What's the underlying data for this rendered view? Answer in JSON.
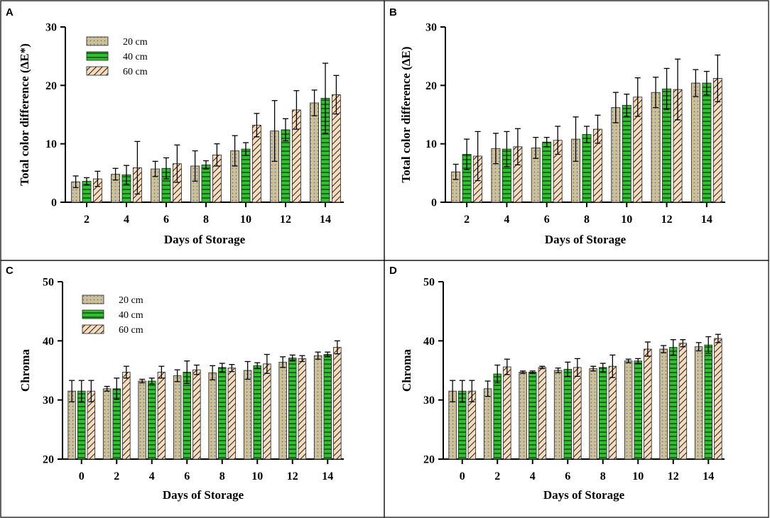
{
  "figure": {
    "series_names": [
      "20 cm",
      "40 cm",
      "60 cm"
    ],
    "colors": {
      "s20": "#cdbf96",
      "s20_dot": "#5a6a9a",
      "s40": "#2fbf2f",
      "s40_line": "#0b2e0b",
      "s60_bg": "#f3dcc0",
      "s60_line": "#2b1a0c"
    }
  },
  "chart_data": [
    {
      "id": "A",
      "type": "bar",
      "panel_label": "A",
      "ylabel": "Total color difference (ΔE*)",
      "xlabel": "Days of Storage",
      "ylim": [
        0,
        30
      ],
      "yticks": [
        0,
        10,
        20,
        30
      ],
      "categories": [
        "2",
        "4",
        "6",
        "8",
        "10",
        "12",
        "14"
      ],
      "series": [
        {
          "name": "20 cm",
          "values": [
            3.5,
            4.8,
            5.7,
            6.2,
            8.8,
            12.2,
            17.0
          ],
          "errors": [
            1.0,
            1.0,
            1.3,
            2.6,
            2.6,
            5.2,
            2.2
          ]
        },
        {
          "name": "40 cm",
          "values": [
            3.6,
            4.7,
            5.8,
            6.4,
            9.1,
            12.4,
            17.8
          ],
          "errors": [
            0.6,
            1.6,
            1.8,
            0.7,
            1.1,
            1.9,
            6.0
          ]
        },
        {
          "name": "60 cm",
          "values": [
            4.0,
            5.9,
            6.6,
            8.1,
            13.2,
            15.8,
            18.4
          ],
          "errors": [
            1.3,
            4.5,
            3.2,
            1.9,
            2.0,
            3.3,
            3.3
          ]
        }
      ],
      "legend_position": "top-left"
    },
    {
      "id": "B",
      "type": "bar",
      "panel_label": "B",
      "ylabel": "Total color difference (ΔE)",
      "xlabel": "Days of Storage",
      "ylim": [
        0,
        30
      ],
      "yticks": [
        0,
        10,
        20,
        30
      ],
      "categories": [
        "2",
        "4",
        "6",
        "8",
        "10",
        "12",
        "14"
      ],
      "series": [
        {
          "name": "20 cm",
          "values": [
            5.2,
            9.2,
            9.3,
            10.8,
            16.2,
            18.8,
            20.4
          ],
          "errors": [
            1.3,
            2.6,
            1.8,
            3.8,
            2.6,
            2.6,
            2.3
          ]
        },
        {
          "name": "40 cm",
          "values": [
            8.2,
            9.1,
            10.3,
            11.6,
            16.6,
            19.4,
            20.4
          ],
          "errors": [
            2.6,
            3.0,
            0.8,
            1.4,
            1.9,
            3.5,
            2.0
          ]
        },
        {
          "name": "60 cm",
          "values": [
            7.9,
            9.5,
            10.6,
            12.5,
            18.0,
            19.3,
            21.2
          ],
          "errors": [
            4.2,
            3.1,
            2.4,
            2.4,
            3.3,
            5.2,
            4.0
          ]
        }
      ],
      "legend_position": "none"
    },
    {
      "id": "C",
      "type": "bar",
      "panel_label": "C",
      "ylabel": "Chroma",
      "xlabel": "Days of Storage",
      "ylim": [
        20,
        50
      ],
      "yticks": [
        20,
        30,
        40,
        50
      ],
      "categories": [
        "0",
        "2",
        "4",
        "6",
        "8",
        "10",
        "12",
        "14"
      ],
      "series": [
        {
          "name": "20 cm",
          "values": [
            31.5,
            31.9,
            33.2,
            34.1,
            34.6,
            35.0,
            36.4,
            37.5
          ],
          "errors": [
            1.8,
            0.4,
            0.3,
            1.0,
            1.2,
            1.5,
            0.9,
            0.6
          ]
        },
        {
          "name": "40 cm",
          "values": [
            31.5,
            31.9,
            33.2,
            34.7,
            35.5,
            35.8,
            37.1,
            37.7
          ],
          "errors": [
            1.8,
            1.8,
            0.5,
            1.9,
            0.7,
            0.5,
            0.5,
            0.4
          ]
        },
        {
          "name": "60 cm",
          "values": [
            31.5,
            34.7,
            34.7,
            35.1,
            35.4,
            36.1,
            37.0,
            38.9
          ],
          "errors": [
            1.8,
            1.0,
            1.0,
            0.8,
            0.6,
            1.6,
            0.5,
            1.1
          ]
        }
      ],
      "legend_position": "top-left"
    },
    {
      "id": "D",
      "type": "bar",
      "panel_label": "D",
      "ylabel": "Chroma",
      "xlabel": "Days of Storage",
      "ylim": [
        20,
        50
      ],
      "yticks": [
        20,
        30,
        40,
        50
      ],
      "categories": [
        "0",
        "2",
        "4",
        "6",
        "8",
        "10",
        "12",
        "14"
      ],
      "series": [
        {
          "name": "20 cm",
          "values": [
            31.5,
            31.9,
            34.7,
            35.0,
            35.3,
            36.6,
            38.6,
            39.0
          ],
          "errors": [
            1.8,
            1.3,
            0.2,
            0.4,
            0.4,
            0.3,
            0.6,
            0.7
          ]
        },
        {
          "name": "40 cm",
          "values": [
            31.5,
            34.4,
            34.7,
            35.2,
            35.5,
            36.6,
            38.9,
            39.3
          ],
          "errors": [
            1.8,
            1.5,
            0.2,
            1.2,
            0.7,
            0.4,
            1.3,
            1.4
          ]
        },
        {
          "name": "60 cm",
          "values": [
            31.5,
            35.6,
            35.5,
            35.5,
            35.7,
            38.6,
            39.6,
            40.4
          ],
          "errors": [
            1.8,
            1.3,
            0.2,
            1.5,
            1.9,
            1.2,
            0.6,
            0.7
          ]
        }
      ],
      "legend_position": "none"
    }
  ]
}
